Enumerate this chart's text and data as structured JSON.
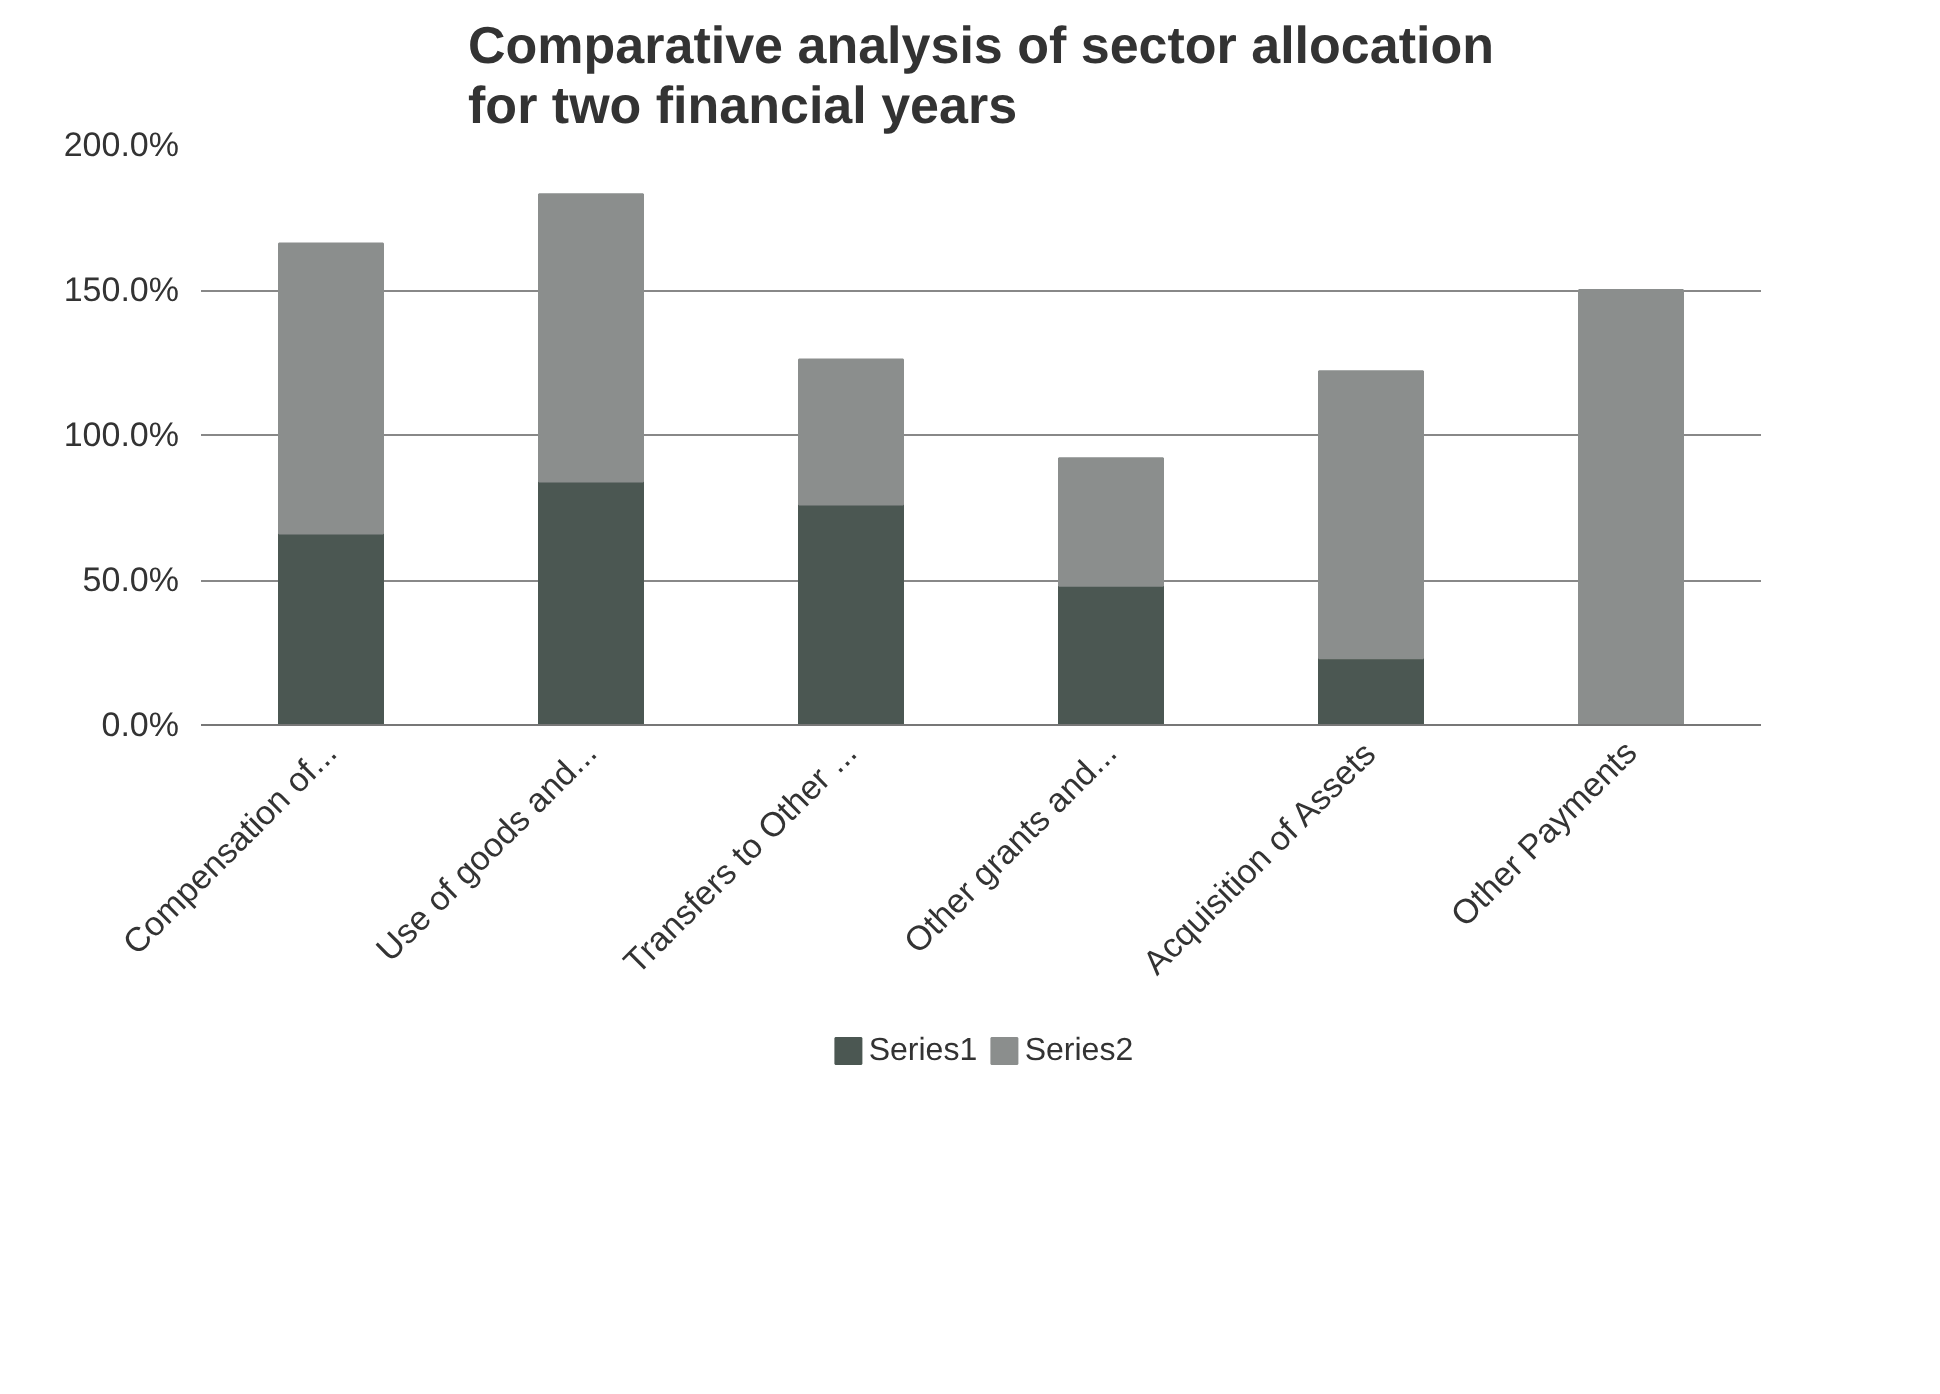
{
  "chart_data": {
    "type": "bar",
    "title": "Comparative analysis of sector allocation for two financial years",
    "categories": [
      "Compensation of...",
      "Use of goods and...",
      "Transfers to Other ...",
      "Other grants and...",
      "Acquisition of Assets",
      "Other Payments"
    ],
    "stacked": true,
    "series": [
      {
        "name": "Series1",
        "color": "#4b5752",
        "values": [
          66,
          84,
          76,
          48,
          23,
          0
        ]
      },
      {
        "name": "Series2",
        "color": "#8b8e8d",
        "values": [
          100,
          99,
          50,
          44,
          99,
          150
        ]
      }
    ],
    "ylim": [
      0,
      200
    ],
    "yticks": [
      {
        "value": 0,
        "label": "0.0%"
      },
      {
        "value": 50,
        "label": "50.0%"
      },
      {
        "value": 100,
        "label": "100.0%"
      },
      {
        "value": 150,
        "label": "150.0%"
      },
      {
        "value": 200,
        "label": "200.0%"
      }
    ],
    "grid": "y",
    "legend": "bottom"
  }
}
